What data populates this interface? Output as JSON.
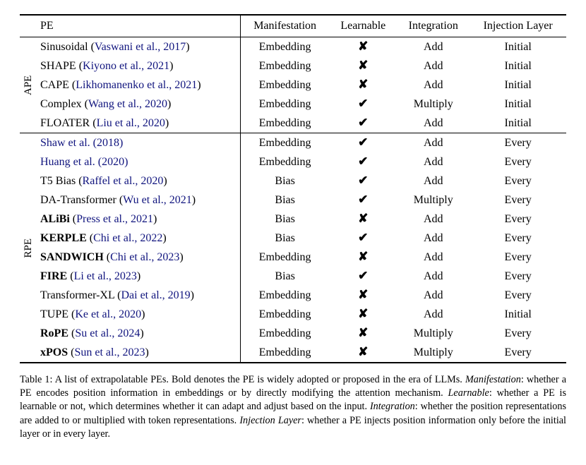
{
  "colors": {
    "text": "#000000",
    "citation": "#10147e",
    "rule": "#000000",
    "background": "#ffffff"
  },
  "typography": {
    "body_font": "Times New Roman",
    "table_fontsize_pt": 12,
    "caption_fontsize_pt": 10.5
  },
  "table": {
    "headers": {
      "group": "",
      "pe": "PE",
      "manifestation": "Manifestation",
      "learnable": "Learnable",
      "integration": "Integration",
      "injection": "Injection Layer"
    },
    "marks": {
      "check": "✔",
      "cross": "✘"
    },
    "groups": [
      {
        "label": "APE",
        "rows": [
          {
            "name": "Sinusoidal",
            "name_bold": false,
            "cite": "Vaswani et al., 2017",
            "cite_parens": true,
            "manifestation": "Embedding",
            "learnable": false,
            "integration": "Add",
            "injection": "Initial"
          },
          {
            "name": "SHAPE",
            "name_bold": false,
            "cite": "Kiyono et al., 2021",
            "cite_parens": true,
            "manifestation": "Embedding",
            "learnable": false,
            "integration": "Add",
            "injection": "Initial"
          },
          {
            "name": "CAPE",
            "name_bold": false,
            "cite": "Likhomanenko et al., 2021",
            "cite_parens": true,
            "manifestation": "Embedding",
            "learnable": false,
            "integration": "Add",
            "injection": "Initial"
          },
          {
            "name": "Complex",
            "name_bold": false,
            "cite": "Wang et al., 2020",
            "cite_parens": true,
            "manifestation": "Embedding",
            "learnable": true,
            "integration": "Multiply",
            "injection": "Initial"
          },
          {
            "name": "FLOATER",
            "name_bold": false,
            "cite": "Liu et al., 2020",
            "cite_parens": true,
            "manifestation": "Embedding",
            "learnable": true,
            "integration": "Add",
            "injection": "Initial"
          }
        ]
      },
      {
        "label": "RPE",
        "rows": [
          {
            "name": "",
            "name_bold": false,
            "cite": "Shaw et al. (2018)",
            "cite_parens": false,
            "manifestation": "Embedding",
            "learnable": true,
            "integration": "Add",
            "injection": "Every"
          },
          {
            "name": "",
            "name_bold": false,
            "cite": "Huang et al. (2020)",
            "cite_parens": false,
            "manifestation": "Embedding",
            "learnable": true,
            "integration": "Add",
            "injection": "Every"
          },
          {
            "name": "T5 Bias",
            "name_bold": false,
            "cite": "Raffel et al., 2020",
            "cite_parens": true,
            "manifestation": "Bias",
            "learnable": true,
            "integration": "Add",
            "injection": "Every"
          },
          {
            "name": "DA-Transformer",
            "name_bold": false,
            "cite": "Wu et al., 2021",
            "cite_parens": true,
            "manifestation": "Bias",
            "learnable": true,
            "integration": "Multiply",
            "injection": "Every"
          },
          {
            "name": "ALiBi",
            "name_bold": true,
            "cite": "Press et al., 2021",
            "cite_parens": true,
            "manifestation": "Bias",
            "learnable": false,
            "integration": "Add",
            "injection": "Every"
          },
          {
            "name": "KERPLE",
            "name_bold": true,
            "cite": "Chi et al., 2022",
            "cite_parens": true,
            "manifestation": "Bias",
            "learnable": true,
            "integration": "Add",
            "injection": "Every"
          },
          {
            "name": "SANDWICH",
            "name_bold": true,
            "cite": "Chi et al., 2023",
            "cite_parens": true,
            "manifestation": "Embedding",
            "learnable": false,
            "integration": "Add",
            "injection": "Every"
          },
          {
            "name": "FIRE",
            "name_bold": true,
            "cite": "Li et al., 2023",
            "cite_parens": true,
            "manifestation": "Bias",
            "learnable": true,
            "integration": "Add",
            "injection": "Every"
          },
          {
            "name": "Transformer-XL",
            "name_bold": false,
            "cite": "Dai et al., 2019",
            "cite_parens": true,
            "manifestation": "Embedding",
            "learnable": false,
            "integration": "Add",
            "injection": "Every"
          },
          {
            "name": "TUPE",
            "name_bold": false,
            "cite": "Ke et al., 2020",
            "cite_parens": true,
            "manifestation": "Embedding",
            "learnable": false,
            "integration": "Add",
            "injection": "Initial"
          },
          {
            "name": "RoPE",
            "name_bold": true,
            "cite": "Su et al., 2024",
            "cite_parens": true,
            "manifestation": "Embedding",
            "learnable": false,
            "integration": "Multiply",
            "injection": "Every"
          },
          {
            "name": "xPOS",
            "name_bold": true,
            "cite": "Sun et al., 2023",
            "cite_parens": true,
            "manifestation": "Embedding",
            "learnable": false,
            "integration": "Multiply",
            "injection": "Every"
          }
        ]
      }
    ]
  },
  "caption": {
    "label": "Table 1:",
    "lead": " A list of extrapolatable PEs. Bold denotes the PE is widely adopted or proposed in the era of LLMs. ",
    "m_label": "Manifestation",
    "m_text": ": whether a PE encodes position information in embeddings or by directly modifying the attention mechanism. ",
    "l_label": "Learnable",
    "l_text": ": whether a PE is learnable or not, which determines whether it can adapt and adjust based on the input. ",
    "i_label": "Integration",
    "i_text": ": whether the position representations are added to or multiplied with token representations. ",
    "j_label": "Injection Layer",
    "j_text": ": whether a PE injects position information only before the initial layer or in every layer."
  }
}
